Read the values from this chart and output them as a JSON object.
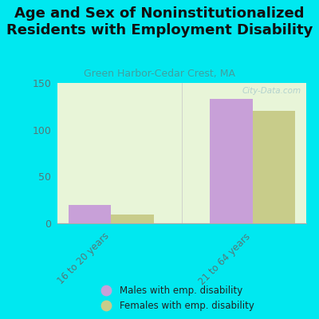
{
  "title": "Age and Sex of Noninstitutionalized\nResidents with Employment Disability",
  "subtitle": "Green Harbor-Cedar Crest, MA",
  "categories": [
    "16 to 20 years",
    "21 to 64 years"
  ],
  "males": [
    20,
    133
  ],
  "females": [
    9,
    120
  ],
  "male_color": "#c8a0d8",
  "female_color": "#c8cc8a",
  "ylim": [
    0,
    150
  ],
  "yticks": [
    0,
    50,
    100,
    150
  ],
  "background_color": "#00e8f0",
  "plot_bg_gradient_top": "#e8f5e0",
  "plot_bg_gradient_bottom": "#f8fdf2",
  "bar_width": 0.3,
  "watermark": "City-Data.com",
  "legend_male": "Males with emp. disability",
  "legend_female": "Females with emp. disability",
  "title_fontsize": 13,
  "subtitle_fontsize": 9,
  "subtitle_color": "#40a0a0"
}
